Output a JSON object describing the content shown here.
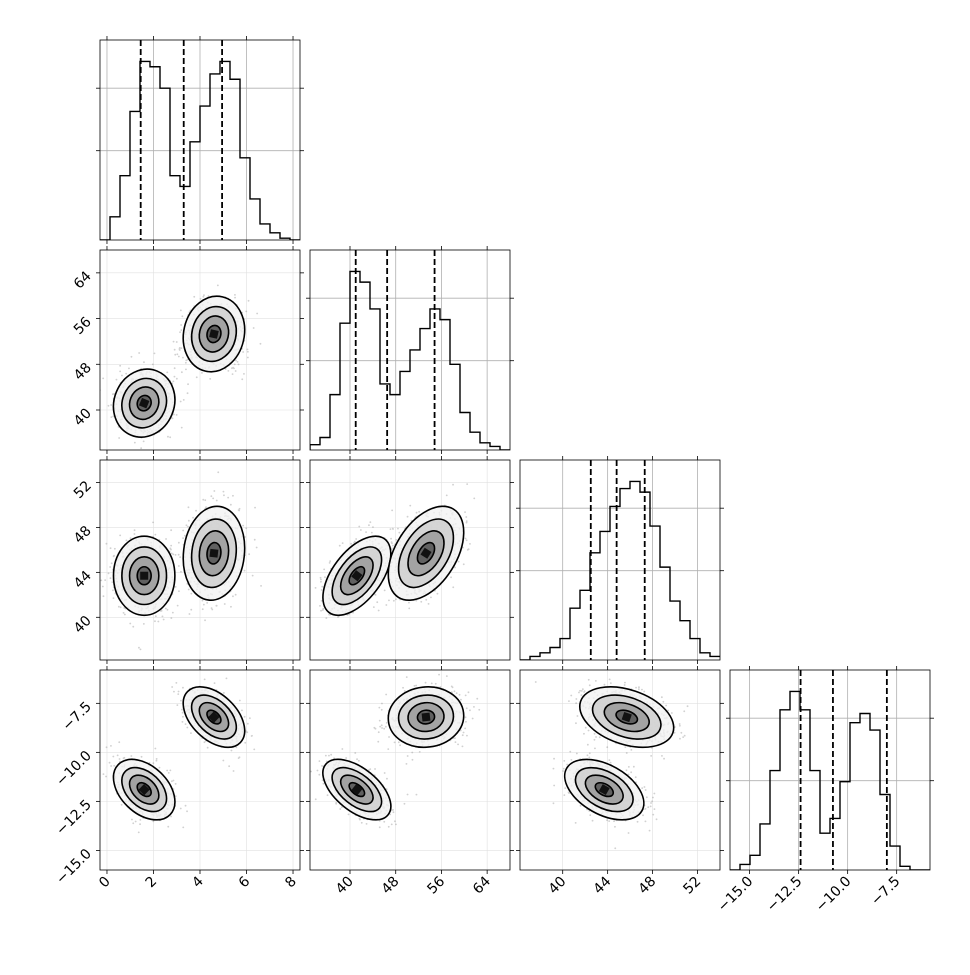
{
  "chart_data": {
    "type": "scatter",
    "variables": [
      {
        "ticks": [
          {
            "v": 0,
            "label": "0"
          },
          {
            "v": 2,
            "label": "2"
          },
          {
            "v": 4,
            "label": "4"
          },
          {
            "v": 6,
            "label": "6"
          },
          {
            "v": 8,
            "label": "8"
          }
        ],
        "range": [
          -0.3,
          8.3
        ]
      },
      {
        "ticks": [
          {
            "v": 40,
            "label": "40"
          },
          {
            "v": 48,
            "label": "48"
          },
          {
            "v": 56,
            "label": "56"
          },
          {
            "v": 64,
            "label": "64"
          }
        ],
        "range": [
          33.0,
          68.0
        ]
      },
      {
        "ticks": [
          {
            "v": 40,
            "label": "40"
          },
          {
            "v": 44,
            "label": "44"
          },
          {
            "v": 48,
            "label": "48"
          },
          {
            "v": 52,
            "label": "52"
          }
        ],
        "range": [
          36.2,
          54.0
        ]
      },
      {
        "ticks": [
          {
            "v": -15,
            "label": "−15.0"
          },
          {
            "v": -12.5,
            "label": "−12.5"
          },
          {
            "v": -10,
            "label": "−10.0"
          },
          {
            "v": -7.5,
            "label": "−7.5"
          }
        ],
        "range": [
          -16.0,
          -5.8
        ]
      }
    ],
    "diagonal": [
      {
        "quantiles": [
          1.45,
          3.3,
          4.95
        ],
        "bins": {
          "start": -0.3,
          "width": 0.43
        },
        "counts": [
          0.0,
          0.13,
          0.36,
          0.72,
          1.0,
          0.97,
          0.85,
          0.36,
          0.3,
          0.55,
          0.75,
          0.93,
          1.0,
          0.9,
          0.46,
          0.23,
          0.09,
          0.04,
          0.01,
          0.0
        ]
      },
      {
        "quantiles": [
          41.0,
          46.5,
          54.8
        ],
        "bins": {
          "start": 33.0,
          "width": 1.75
        },
        "counts": [
          0.03,
          0.07,
          0.31,
          0.71,
          1.0,
          0.94,
          0.79,
          0.37,
          0.31,
          0.44,
          0.56,
          0.68,
          0.79,
          0.73,
          0.48,
          0.21,
          0.1,
          0.04,
          0.02,
          0.0
        ]
      },
      {
        "quantiles": [
          42.5,
          44.8,
          47.3
        ],
        "bins": {
          "start": 36.2,
          "width": 0.89
        },
        "counts": [
          0.0,
          0.02,
          0.04,
          0.07,
          0.12,
          0.29,
          0.39,
          0.6,
          0.72,
          0.86,
          0.96,
          1.0,
          0.94,
          0.75,
          0.52,
          0.33,
          0.22,
          0.12,
          0.04,
          0.02
        ]
      },
      {
        "quantiles": [
          -12.4,
          -10.75,
          -8.0
        ],
        "bins": {
          "start": -16.0,
          "width": 0.51
        },
        "counts": [
          0.0,
          0.03,
          0.08,
          0.25,
          0.54,
          0.87,
          0.97,
          0.87,
          0.54,
          0.2,
          0.28,
          0.48,
          0.8,
          0.85,
          0.76,
          0.41,
          0.13,
          0.02,
          0.0,
          0.0
        ]
      }
    ],
    "clusters": [
      {
        "mean": [
          1.6,
          41.2,
          43.7,
          -11.9
        ],
        "sd": [
          0.6,
          2.7,
          1.6,
          0.7
        ],
        "weight": 0.5
      },
      {
        "mean": [
          4.6,
          53.3,
          45.7,
          -8.2
        ],
        "sd": [
          0.6,
          3.0,
          1.9,
          0.7
        ],
        "weight": 0.5
      }
    ],
    "correlations": [
      {
        "i": 1,
        "j": 0,
        "rho": [
          0.1,
          0.1
        ]
      },
      {
        "i": 2,
        "j": 0,
        "rho": [
          0.0,
          0.1
        ]
      },
      {
        "i": 2,
        "j": 1,
        "rho": [
          0.55,
          0.45
        ]
      },
      {
        "i": 3,
        "j": 0,
        "rho": [
          -0.4,
          -0.45
        ]
      },
      {
        "i": 3,
        "j": 1,
        "rho": [
          -0.55,
          0.05
        ]
      },
      {
        "i": 3,
        "j": 2,
        "rho": [
          -0.45,
          -0.35
        ]
      }
    ],
    "grid": true
  }
}
